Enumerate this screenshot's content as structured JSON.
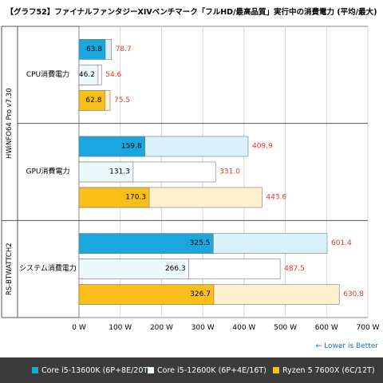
{
  "chart_data": {
    "type": "bar",
    "orientation": "horizontal",
    "title": "【グラフ52】ファイナルファンタジーXIVベンチマーク「フルHD/最高品質」実行中の消費電力 (平均/最大)",
    "groups": [
      {
        "label": "HWiNFO64 Pro v7.30",
        "categories": [
          "CPU消費電力",
          "GPU消費電力"
        ]
      },
      {
        "label": "RS-BTWATTCH2",
        "categories": [
          "システム消費電力"
        ]
      }
    ],
    "categories": [
      "CPU消費電力",
      "GPU消費電力",
      "システム消費電力"
    ],
    "series": [
      {
        "name": "Core i5-13600K (6P+8E/20T)",
        "avg": [
          63.8,
          159.8,
          325.5
        ],
        "max": [
          78.7,
          409.9,
          601.4
        ],
        "color": "#1aa7e0",
        "max_color": "#d9f1fb"
      },
      {
        "name": "Core i5-12600K (6P+4E/16T)",
        "avg": [
          46.2,
          131.3,
          266.3
        ],
        "max": [
          54.6,
          331.0,
          487.5
        ],
        "color": "#ecf9fb",
        "max_color": "#ffffff"
      },
      {
        "name": "Ryzen 5 7600X (6C/12T)",
        "avg": [
          62.8,
          170.3,
          326.7
        ],
        "max": [
          75.5,
          443.6,
          630.8
        ],
        "color": "#fbbf1a",
        "max_color": "#fdf0cd"
      }
    ],
    "avg_labels": [
      [
        "63.8",
        "46.2",
        "62.8"
      ],
      [
        "159.8",
        "131.3",
        "170.3"
      ],
      [
        "325.5",
        "266.3",
        "326.7"
      ]
    ],
    "max_labels": [
      [
        "78.7",
        "54.6",
        "75.5"
      ],
      [
        "409.9",
        "331.0",
        "443.6"
      ],
      [
        "601.4",
        "487.5",
        "630.8"
      ]
    ],
    "xlim": [
      0,
      700
    ],
    "xticks": [
      0,
      100,
      200,
      300,
      400,
      500,
      600,
      700
    ],
    "xtick_labels": [
      "0 W",
      "100 W",
      "200 W",
      "300 W",
      "400 W",
      "500 W",
      "600 W",
      "700 W"
    ],
    "annotation": "← Lower is Better",
    "grid": true,
    "legend_position": "bottom",
    "colors": {
      "max_label": "#e8332a",
      "annotation": "#1a73c8",
      "grid": "#d6d6d6",
      "legend_bg": "#3b3b3b"
    }
  }
}
